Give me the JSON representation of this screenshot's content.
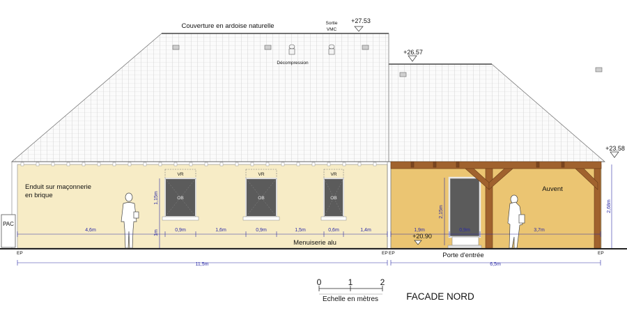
{
  "drawing": {
    "title": "FACADE NORD",
    "scale_label": "Echelle en mètres",
    "scale_ticks": [
      "0",
      "1",
      "2"
    ]
  },
  "annotations": {
    "roof": "Couverture en ardoise naturelle",
    "vmc_line1": "Sortie",
    "vmc_line2": "VMC",
    "decompression": "Décompression",
    "render": "Enduit sur maçonnerie",
    "render2": "en brique",
    "joinery": "Menuiserie alu",
    "canopy": "Auvent",
    "entrance_door": "Porte d'entrée",
    "pac": "PAC",
    "vr": "VR",
    "ob": "OB",
    "ep": "EP"
  },
  "levels": {
    "ridge_main": "+27.53",
    "ridge_annex": "+26.57",
    "eaves": "+23.58",
    "floor": "+20.90"
  },
  "dimensions": {
    "horizontal": [
      "4,6m",
      "0,9m",
      "1,6m",
      "0,9m",
      "1,5m",
      "0,6m",
      "1,4m",
      "1,9m",
      "0,9m",
      "3,7m"
    ],
    "total_main": "11,5m",
    "total_annex": "6,5m",
    "vertical": [
      "1,15m",
      "1m",
      "2,15m",
      "2,68m"
    ]
  },
  "colors": {
    "wall_main": "#f7ecc6",
    "wall_annex": "#ebc572",
    "timber": "#a0622e",
    "glass": "#5b5b5b",
    "roof": "#fafafa",
    "dimension": "#2a2aa6"
  }
}
